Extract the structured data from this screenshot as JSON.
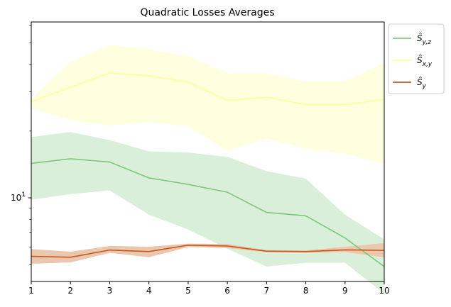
{
  "chart_data": {
    "type": "line",
    "title": "Quadratic Losses Averages",
    "xlabel": "",
    "ylabel": "",
    "yscale": "log",
    "xlim": [
      1,
      10
    ],
    "ylim": [
      4.2,
      62
    ],
    "x": [
      1,
      2,
      3,
      4,
      5,
      6,
      7,
      8,
      9,
      10
    ],
    "x_ticks": [
      "1",
      "2",
      "3",
      "4",
      "5",
      "6",
      "7",
      "8",
      "9",
      "10"
    ],
    "y_ticks": [
      {
        "value": 10,
        "label": "10^1"
      }
    ],
    "y_minor_ticks": [
      5,
      6,
      7,
      8,
      9,
      20,
      30,
      40,
      50,
      60
    ],
    "grid": false,
    "legend": {
      "placement": "upper-right-outside"
    },
    "series": [
      {
        "name": "Ŝ_{y,z}",
        "color": "#7bc97b",
        "band_color": "#d8eed8",
        "values": [
          14.3,
          15.0,
          14.5,
          12.3,
          11.5,
          10.6,
          8.6,
          8.3,
          6.6,
          4.9
        ],
        "lower": [
          9.8,
          10.4,
          10.8,
          8.4,
          7.2,
          5.9,
          4.9,
          5.1,
          5.1,
          3.7
        ],
        "upper": [
          18.8,
          19.8,
          18.2,
          16.2,
          16.0,
          15.3,
          13.2,
          12.2,
          8.4,
          6.5
        ]
      },
      {
        "name": "Ŝ_{x,y}",
        "color": "#ffff99",
        "band_color": "#ffffdd",
        "values": [
          27.1,
          31.5,
          36.5,
          35.5,
          33.2,
          27.5,
          28.4,
          26.3,
          26.3,
          27.8
        ],
        "lower": [
          25.3,
          22.4,
          21.2,
          22.0,
          21.0,
          16.3,
          18.5,
          16.7,
          15.8,
          14.2
        ],
        "upper": [
          28.1,
          40.8,
          48.9,
          46.8,
          43.5,
          36.6,
          36.4,
          33.5,
          33.6,
          40.5
        ]
      },
      {
        "name": "Ŝ_y",
        "color": "#c55a1c",
        "band_color": "#ebc4ab",
        "values": [
          5.45,
          5.4,
          5.82,
          5.73,
          6.12,
          6.07,
          5.75,
          5.73,
          5.83,
          5.8
        ],
        "lower": [
          5.05,
          5.12,
          5.65,
          5.4,
          6.0,
          5.94,
          5.68,
          5.65,
          5.7,
          5.4
        ],
        "upper": [
          5.88,
          5.72,
          6.07,
          6.02,
          6.22,
          6.2,
          5.82,
          5.8,
          6.02,
          6.25
        ]
      }
    ]
  }
}
